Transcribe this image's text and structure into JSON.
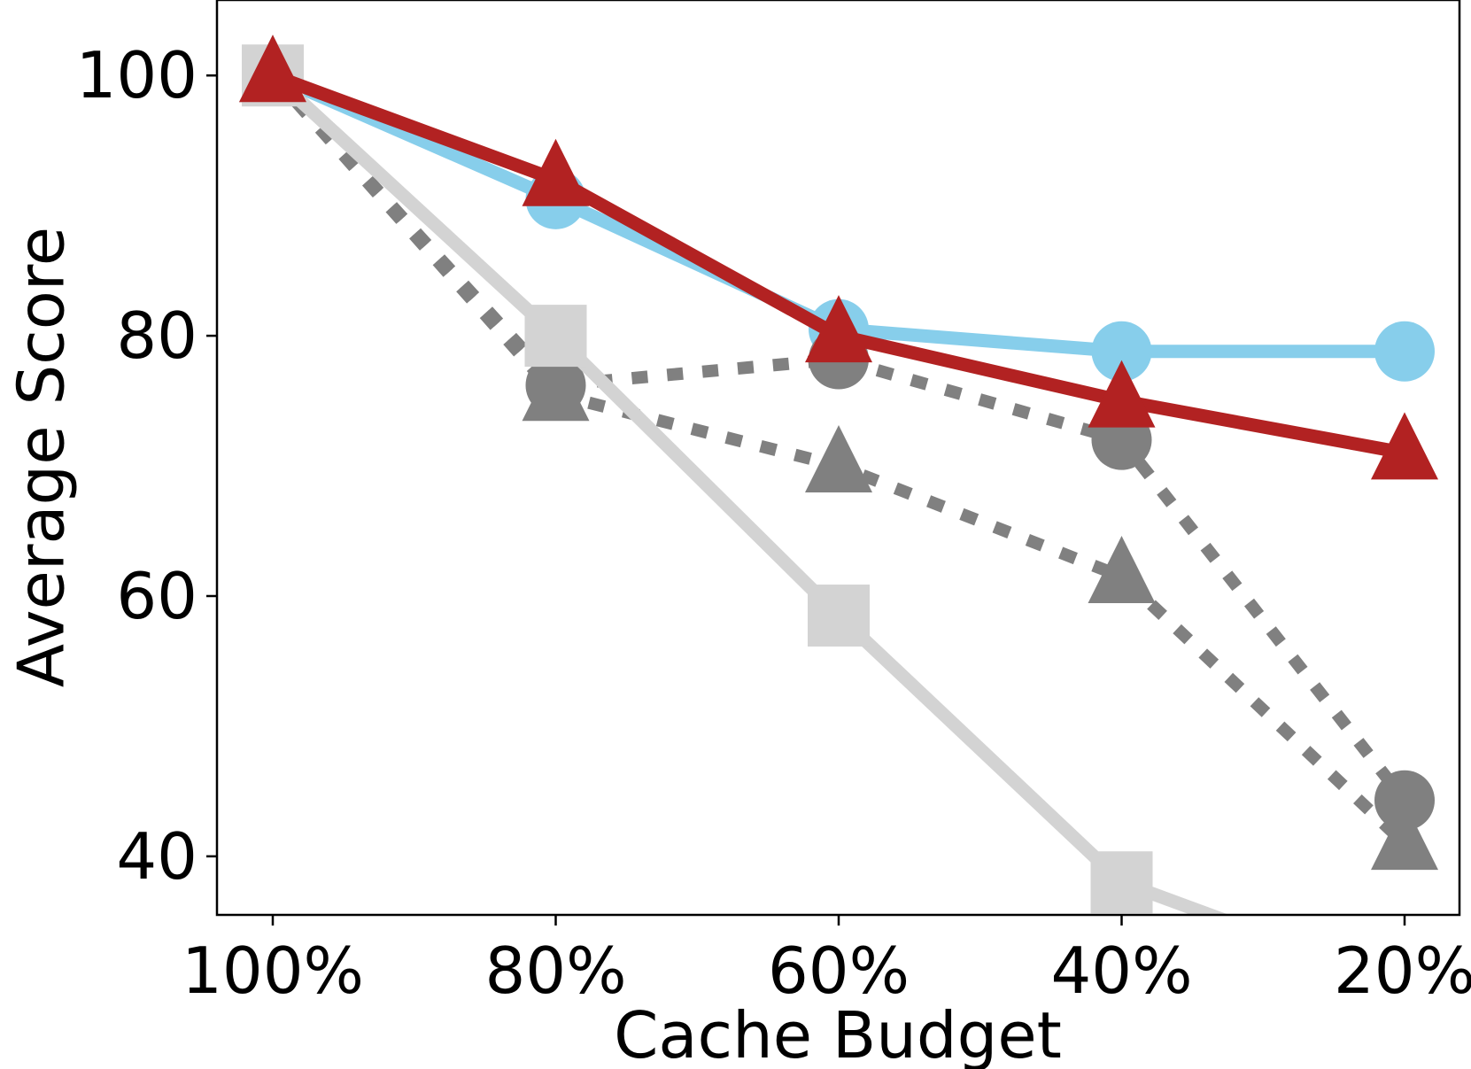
{
  "chart_data": {
    "type": "line",
    "xlabel": "Cache Budget",
    "ylabel": "Average Score",
    "categories": [
      "100%",
      "80%",
      "60%",
      "40%",
      "20%"
    ],
    "ylim": [
      35.5,
      105.8
    ],
    "yticks": [
      40,
      60,
      80,
      100
    ],
    "grid": false,
    "legend": "none",
    "series": [
      {
        "values": [
          100.0,
          90.5,
          80.5,
          78.8,
          78.8
        ],
        "color": "#87CEEB",
        "marker": "circle",
        "line_style": "solid"
      },
      {
        "values": [
          100.0,
          76.2,
          78.2,
          72.0,
          44.3
        ],
        "color": "#808080",
        "marker": "circle",
        "line_style": "dotted"
      },
      {
        "values": [
          100.0,
          75.5,
          70.0,
          61.5,
          41.0
        ],
        "color": "#808080",
        "marker": "triangle",
        "line_style": "dotted"
      },
      {
        "values": [
          100.0,
          80.0,
          58.5,
          38.0,
          30.0
        ],
        "color": "#D3D3D3",
        "marker": "square",
        "line_style": "solid"
      },
      {
        "values": [
          100.0,
          92.0,
          80.0,
          75.0,
          71.0
        ],
        "color": "#B22222",
        "marker": "triangle",
        "line_style": "solid"
      }
    ]
  }
}
